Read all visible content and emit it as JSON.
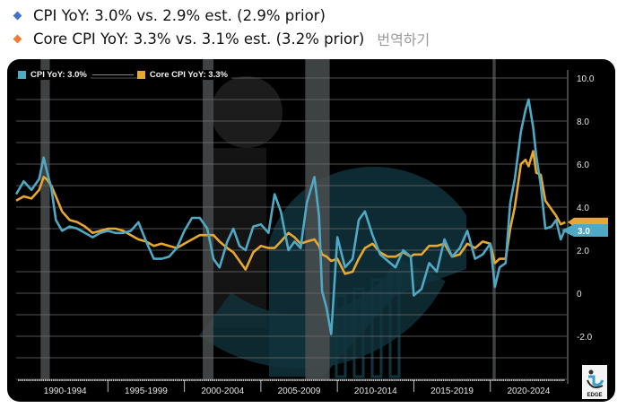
{
  "bullets": [
    {
      "text": "CPI YoY: 3.0% vs. 2.9% est. (2.9% prior)",
      "color": "#4472c4"
    },
    {
      "text": "Core CPI YoY: 3.3% vs. 3.1% est. (3.2% prior)",
      "color": "#ed7d31"
    }
  ],
  "translate_label": "번역하기",
  "legend": {
    "cpi_label": "CPI YoY: 3.0%",
    "core_label": "Core CPI YoY: 3.3%"
  },
  "colors": {
    "cpi": "#4fa8c4",
    "core": "#e8a830",
    "background": "#000000",
    "grid": "#6e6e6e",
    "recession": "#4a4d4f"
  },
  "end_labels": {
    "cpi": "3.0",
    "core": "3.3"
  },
  "brand": "EDGE",
  "chart_data": {
    "type": "line",
    "title": "",
    "xlabel": "",
    "ylabel": "",
    "ylim": [
      -4,
      10.4
    ],
    "yticks": [
      10.0,
      8.0,
      6.0,
      4.0,
      2.0,
      0,
      -2.0
    ],
    "ytick_labels": [
      "10.0",
      "8.0",
      "6.0",
      "4.0",
      "2.0",
      "0",
      "-2.0"
    ],
    "grid": true,
    "legend_position": "top-left",
    "x_periods": [
      "1990-1994",
      "1995-1999",
      "2000-2004",
      "2005-2009",
      "2010-2014",
      "2015-2019",
      "2020-2024"
    ],
    "recessions": [
      [
        1990.6,
        1991.2
      ],
      [
        2001.2,
        2001.9
      ],
      [
        2007.9,
        2009.5
      ],
      [
        2020.15,
        2020.35
      ]
    ],
    "x": [
      1989.0,
      1989.5,
      1990.0,
      1990.5,
      1990.8,
      1991.0,
      1991.3,
      1991.6,
      1992.0,
      1992.5,
      1993.0,
      1993.5,
      1994.0,
      1994.5,
      1995.0,
      1995.5,
      1996.0,
      1996.5,
      1997.0,
      1997.5,
      1998.0,
      1998.5,
      1999.0,
      1999.5,
      2000.0,
      2000.5,
      2001.0,
      2001.5,
      2001.9,
      2002.3,
      2002.8,
      2003.2,
      2003.6,
      2004.0,
      2004.5,
      2005.0,
      2005.5,
      2005.9,
      2006.3,
      2006.8,
      2007.2,
      2007.6,
      2008.0,
      2008.5,
      2008.8,
      2009.0,
      2009.3,
      2009.6,
      2010.0,
      2010.5,
      2011.0,
      2011.4,
      2011.8,
      2012.3,
      2012.8,
      2013.3,
      2013.8,
      2014.3,
      2014.8,
      2015.0,
      2015.5,
      2016.0,
      2016.5,
      2017.0,
      2017.5,
      2018.0,
      2018.5,
      2019.0,
      2019.5,
      2020.0,
      2020.3,
      2020.6,
      2021.0,
      2021.3,
      2021.6,
      2022.0,
      2022.3,
      2022.5,
      2022.8,
      2023.0,
      2023.3,
      2023.6,
      2024.0,
      2024.3,
      2024.6,
      2024.9
    ],
    "series": [
      {
        "name": "CPI YoY",
        "values": [
          4.6,
          5.2,
          4.8,
          5.3,
          6.3,
          5.7,
          4.9,
          3.4,
          2.9,
          3.1,
          3.0,
          2.8,
          2.6,
          2.8,
          2.9,
          2.8,
          2.8,
          2.9,
          3.3,
          2.4,
          1.6,
          1.6,
          1.7,
          2.1,
          2.9,
          3.5,
          3.5,
          3.0,
          1.6,
          1.2,
          2.4,
          3.0,
          2.2,
          2.0,
          3.1,
          3.2,
          2.8,
          4.6,
          3.8,
          2.0,
          2.4,
          2.1,
          4.2,
          5.4,
          3.6,
          0.1,
          -0.7,
          -1.9,
          2.6,
          1.2,
          1.6,
          3.4,
          3.8,
          2.7,
          1.8,
          1.5,
          1.2,
          2.0,
          1.7,
          -0.1,
          0.2,
          1.4,
          1.0,
          2.5,
          1.7,
          2.1,
          2.9,
          1.6,
          1.8,
          2.3,
          0.3,
          1.2,
          1.4,
          4.2,
          5.3,
          7.5,
          8.5,
          9.0,
          7.7,
          6.4,
          5.0,
          3.0,
          3.1,
          3.4,
          2.5,
          3.0
        ]
      },
      {
        "name": "Core CPI YoY",
        "values": [
          4.3,
          4.5,
          4.4,
          4.8,
          5.4,
          5.3,
          5.0,
          4.5,
          3.8,
          3.4,
          3.3,
          3.1,
          2.8,
          2.9,
          3.0,
          3.0,
          2.9,
          2.7,
          2.5,
          2.4,
          2.2,
          2.3,
          2.2,
          2.1,
          2.3,
          2.5,
          2.7,
          2.7,
          2.7,
          2.4,
          2.1,
          1.9,
          1.5,
          1.1,
          1.9,
          2.2,
          2.1,
          2.1,
          2.4,
          2.8,
          2.6,
          2.3,
          2.4,
          2.5,
          2.2,
          1.8,
          1.7,
          1.5,
          1.6,
          0.9,
          1.0,
          1.6,
          2.1,
          2.3,
          1.9,
          1.7,
          1.7,
          1.9,
          1.7,
          1.8,
          1.8,
          2.2,
          2.2,
          2.3,
          1.7,
          1.8,
          2.3,
          2.1,
          2.4,
          2.3,
          1.4,
          1.6,
          1.6,
          3.0,
          4.0,
          6.0,
          6.2,
          5.9,
          6.6,
          5.6,
          5.5,
          4.3,
          3.9,
          3.6,
          3.2,
          3.3
        ]
      }
    ]
  }
}
